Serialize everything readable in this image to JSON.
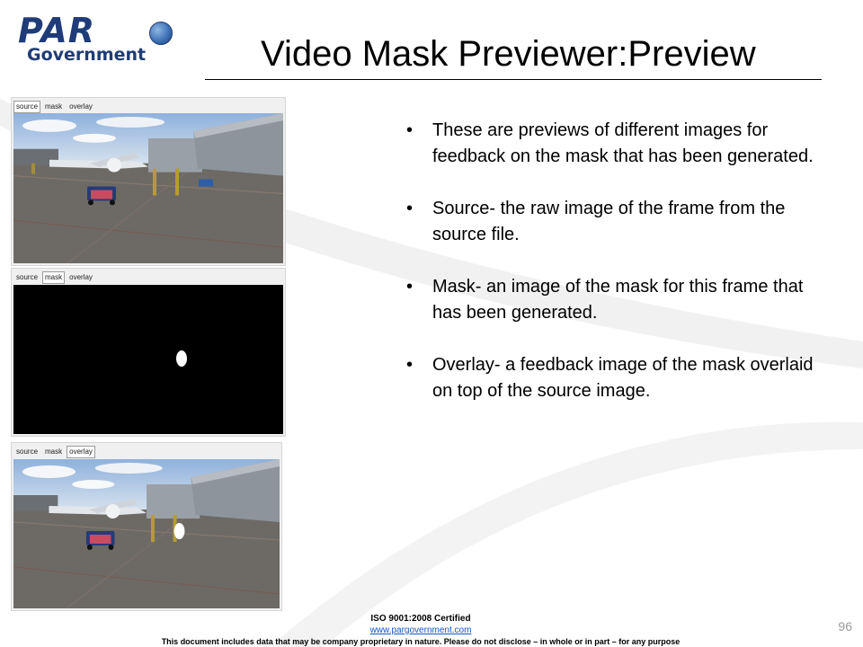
{
  "logo": {
    "par": "PAR",
    "government": "Government"
  },
  "title": "Video Mask Previewer:Preview",
  "previews": [
    {
      "tabs": [
        "source",
        "mask",
        "overlay"
      ],
      "active": "source",
      "view": "source"
    },
    {
      "tabs": [
        "source",
        "mask",
        "overlay"
      ],
      "active": "mask",
      "view": "mask"
    },
    {
      "tabs": [
        "source",
        "mask",
        "overlay"
      ],
      "active": "overlay",
      "view": "overlay"
    }
  ],
  "bullets": [
    "These are previews of different images for feedback on the mask that has been generated.",
    "Source- the raw image of the frame from the source file.",
    "Mask- an image of the mask for this frame that has been generated.",
    "Overlay- a feedback image of the mask overlaid on top of the source image."
  ],
  "footer": {
    "iso": "ISO 9001:2008 Certified",
    "website": "www.pargovernment.com",
    "disclaimer": "This document includes data that may be company proprietary in nature. Please do not disclose – in whole or in part – for any purpose"
  },
  "page_number": "96"
}
